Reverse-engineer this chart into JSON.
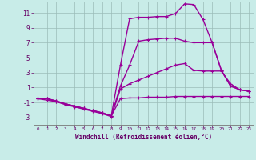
{
  "bg_color": "#c8ece8",
  "grid_color": "#9bbcb8",
  "line_color": "#990099",
  "xlabel": "Windchill (Refroidissement éolien,°C)",
  "xlabel_color": "#660066",
  "tick_color": "#660066",
  "xlim": [
    -0.5,
    23.5
  ],
  "ylim": [
    -4.0,
    12.5
  ],
  "yticks": [
    -3,
    -1,
    1,
    3,
    5,
    7,
    9,
    11
  ],
  "xticks": [
    0,
    1,
    2,
    3,
    4,
    5,
    6,
    7,
    8,
    9,
    10,
    11,
    12,
    13,
    14,
    15,
    16,
    17,
    18,
    19,
    20,
    21,
    22,
    23
  ],
  "line_top_x": [
    0,
    1,
    2,
    3,
    4,
    5,
    6,
    7,
    8,
    9,
    10,
    11,
    12,
    13,
    14,
    15,
    16,
    17,
    18,
    19,
    20,
    21,
    22,
    23
  ],
  "line_top_y": [
    -0.5,
    -0.5,
    -0.8,
    -1.2,
    -1.5,
    -1.8,
    -2.1,
    -2.4,
    -2.8,
    4.0,
    10.2,
    10.4,
    10.4,
    10.5,
    10.5,
    10.9,
    12.2,
    12.1,
    10.1,
    7.0,
    3.3,
    1.2,
    0.7,
    0.5
  ],
  "line_mid1_x": [
    0,
    1,
    2,
    3,
    4,
    5,
    6,
    7,
    8,
    9,
    10,
    11,
    12,
    13,
    14,
    15,
    16,
    17,
    18,
    19,
    20,
    21,
    22,
    23
  ],
  "line_mid1_y": [
    -0.5,
    -0.5,
    -0.8,
    -1.2,
    -1.5,
    -1.8,
    -2.1,
    -2.4,
    -2.8,
    1.2,
    4.0,
    7.2,
    7.4,
    7.5,
    7.6,
    7.6,
    7.2,
    7.0,
    7.0,
    7.0,
    3.3,
    1.2,
    0.7,
    0.5
  ],
  "line_mid2_x": [
    0,
    1,
    2,
    3,
    4,
    5,
    6,
    7,
    8,
    9,
    10,
    11,
    12,
    13,
    14,
    15,
    16,
    17,
    18,
    19,
    20,
    21,
    22,
    23
  ],
  "line_mid2_y": [
    -0.5,
    -0.5,
    -0.9,
    -1.3,
    -1.6,
    -1.9,
    -2.2,
    -2.5,
    -2.9,
    0.8,
    1.5,
    2.0,
    2.5,
    3.0,
    3.5,
    4.0,
    4.2,
    3.3,
    3.2,
    3.2,
    3.2,
    1.5,
    0.7,
    0.5
  ],
  "line_bot_x": [
    0,
    1,
    2,
    3,
    4,
    5,
    6,
    7,
    8,
    9,
    10,
    11,
    12,
    13,
    14,
    15,
    16,
    17,
    18,
    19,
    20,
    21,
    22,
    23
  ],
  "line_bot_y": [
    -0.5,
    -0.7,
    -0.9,
    -1.2,
    -1.5,
    -1.8,
    -2.1,
    -2.4,
    -2.8,
    -0.5,
    -0.4,
    -0.4,
    -0.3,
    -0.3,
    -0.3,
    -0.2,
    -0.2,
    -0.2,
    -0.2,
    -0.2,
    -0.2,
    -0.2,
    -0.2,
    -0.2
  ]
}
